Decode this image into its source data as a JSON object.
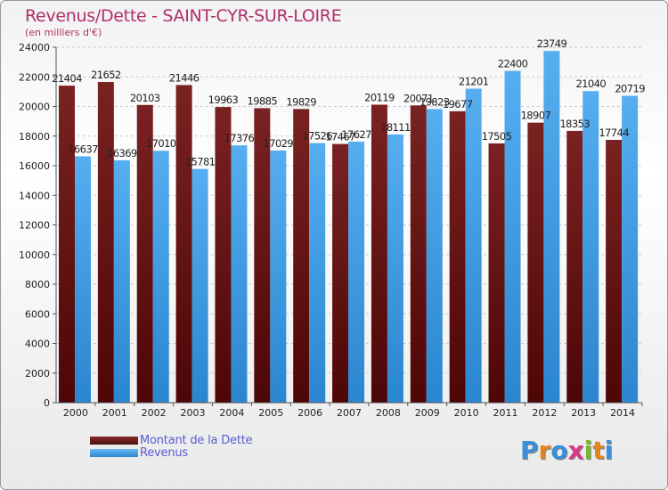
{
  "header": {
    "title": "Revenus/Dette - SAINT-CYR-SUR-LOIRE",
    "subtitle": "(en milliers d'€)"
  },
  "colors": {
    "dette": "#6b1a1a",
    "revenus": "#3d9ae8"
  },
  "logo": {
    "text": "Proxiti"
  },
  "chart_data": {
    "type": "bar",
    "title": "Revenus/Dette - SAINT-CYR-SUR-LOIRE",
    "subtitle": "(en milliers d'€)",
    "categories": [
      "2000",
      "2001",
      "2002",
      "2003",
      "2004",
      "2005",
      "2006",
      "2007",
      "2008",
      "2009",
      "2010",
      "2011",
      "2012",
      "2013",
      "2014"
    ],
    "series": [
      {
        "name": "Montant de la Dette",
        "values": [
          21404,
          21652,
          20103,
          21446,
          19963,
          19885,
          19829,
          17467,
          20119,
          20071,
          19677,
          17505,
          18907,
          18353,
          17744
        ],
        "labels": [
          "21404",
          "21652",
          "20103",
          "21446",
          "19963",
          "19885",
          "19829",
          "17467",
          "20119",
          "20071",
          "19677",
          "17505",
          "18907",
          "18353",
          "17744"
        ]
      },
      {
        "name": "Revenus",
        "values": [
          16637,
          16369,
          17010,
          15781,
          17376,
          17029,
          17526,
          17627,
          18111,
          19823,
          21201,
          22400,
          23749,
          21040,
          20719
        ],
        "labels": [
          "16637",
          "16369",
          "17010",
          "15781",
          "17376",
          "17029",
          "17526",
          "17627",
          "18111",
          "19823",
          "21201",
          "22400",
          "23749",
          "21040",
          "20719"
        ]
      }
    ],
    "ylim": [
      0,
      24000
    ],
    "yticks": [
      0,
      2000,
      4000,
      6000,
      8000,
      10000,
      12000,
      14000,
      16000,
      18000,
      20000,
      22000,
      24000
    ],
    "grid": true,
    "legend": "bottom-left"
  }
}
